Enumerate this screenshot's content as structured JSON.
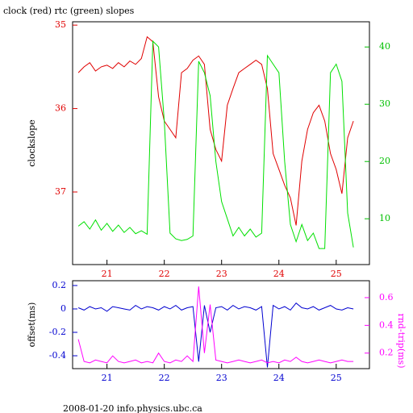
{
  "chart_data": [
    {
      "type": "line",
      "title": "clock (red) rtc (green) slopes",
      "ylabel": "clockslope",
      "x": [
        20.5,
        20.6,
        20.7,
        20.8,
        20.9,
        21.0,
        21.1,
        21.2,
        21.3,
        21.4,
        21.5,
        21.6,
        21.7,
        21.8,
        21.9,
        22.0,
        22.1,
        22.2,
        22.3,
        22.4,
        22.5,
        22.6,
        22.7,
        22.8,
        22.9,
        23.0,
        23.1,
        23.2,
        23.3,
        23.4,
        23.5,
        23.6,
        23.7,
        23.8,
        23.9,
        24.0,
        24.1,
        24.2,
        24.3,
        24.4,
        24.5,
        24.6,
        24.7,
        24.8,
        24.9,
        25.0,
        25.1,
        25.2,
        25.3
      ],
      "series": [
        {
          "color": "#e00000",
          "axis": "y",
          "values": [
            35.57,
            35.5,
            35.45,
            35.55,
            35.5,
            35.48,
            35.52,
            35.45,
            35.5,
            35.43,
            35.47,
            35.4,
            35.14,
            35.2,
            35.86,
            36.15,
            36.25,
            36.35,
            35.57,
            35.52,
            35.42,
            35.37,
            35.47,
            36.25,
            36.49,
            36.63,
            35.96,
            35.76,
            35.57,
            35.52,
            35.47,
            35.42,
            35.47,
            35.76,
            36.54,
            36.73,
            36.92,
            37.07,
            37.4,
            36.63,
            36.25,
            36.05,
            35.96,
            36.15,
            36.54,
            36.73,
            37.02,
            36.35,
            36.15
          ]
        },
        {
          "color": "#00e000",
          "axis": "y2",
          "values": [
            8.7,
            9.5,
            8.2,
            9.8,
            8.0,
            9.2,
            7.8,
            8.9,
            7.6,
            8.5,
            7.4,
            7.9,
            7.3,
            41,
            40,
            27,
            7.5,
            6.5,
            6.2,
            6.4,
            7.0,
            37.5,
            35.5,
            31.5,
            20,
            13,
            10,
            7.0,
            8.5,
            7.0,
            8.2,
            6.8,
            7.5,
            38.5,
            37,
            35.5,
            20,
            9,
            6,
            9,
            6.2,
            7.5,
            4.8,
            4.8,
            35.5,
            37,
            34,
            11,
            5
          ]
        }
      ],
      "xlim": [
        20.4,
        25.58
      ],
      "xticks": [
        21,
        22,
        23,
        24,
        25
      ],
      "xcolor": "#e00000",
      "ylim": [
        34.96,
        37.87
      ],
      "yticks": [
        35,
        36,
        37
      ],
      "yinvert": true,
      "ycolor": "#e00000",
      "y2lim": [
        2,
        44.4
      ],
      "y2ticks": [
        10,
        20,
        30,
        40
      ],
      "y2color": "#00c000"
    },
    {
      "type": "line",
      "ylabel": "offset(ms)",
      "y2label": "rnd-trip(ms)",
      "x": [
        20.5,
        20.6,
        20.7,
        20.8,
        20.9,
        21.0,
        21.1,
        21.2,
        21.3,
        21.4,
        21.5,
        21.6,
        21.7,
        21.8,
        21.9,
        22.0,
        22.1,
        22.2,
        22.3,
        22.4,
        22.5,
        22.6,
        22.7,
        22.8,
        22.9,
        23.0,
        23.1,
        23.2,
        23.3,
        23.4,
        23.5,
        23.6,
        23.7,
        23.8,
        23.9,
        24.0,
        24.1,
        24.2,
        24.3,
        24.4,
        24.5,
        24.6,
        24.7,
        24.8,
        24.9,
        25.0,
        25.1,
        25.2,
        25.3
      ],
      "series": [
        {
          "color": "#0000d0",
          "axis": "y",
          "values": [
            0.01,
            -0.01,
            0.02,
            0,
            0.01,
            -0.02,
            0.02,
            0.01,
            0,
            -0.01,
            0.03,
            0,
            0.02,
            0.01,
            -0.01,
            0.02,
            0,
            0.03,
            -0.01,
            0.01,
            0.02,
            -0.45,
            0.03,
            -0.2,
            0.01,
            0.02,
            -0.01,
            0.03,
            0,
            0.02,
            0.01,
            -0.01,
            0.02,
            -0.5,
            0.03,
            0,
            0.02,
            -0.01,
            0.05,
            0.01,
            0,
            0.02,
            -0.01,
            0.01,
            0.03,
            0,
            -0.01,
            0.01,
            0
          ]
        },
        {
          "color": "#ff00ff",
          "axis": "y2",
          "values": [
            0.3,
            0.14,
            0.13,
            0.15,
            0.14,
            0.13,
            0.18,
            0.14,
            0.13,
            0.14,
            0.15,
            0.13,
            0.14,
            0.13,
            0.2,
            0.14,
            0.13,
            0.15,
            0.14,
            0.18,
            0.14,
            0.68,
            0.2,
            0.55,
            0.15,
            0.14,
            0.13,
            0.14,
            0.15,
            0.14,
            0.13,
            0.14,
            0.15,
            0.13,
            0.14,
            0.13,
            0.15,
            0.14,
            0.17,
            0.14,
            0.13,
            0.14,
            0.15,
            0.14,
            0.13,
            0.14,
            0.15,
            0.14,
            0.14
          ]
        }
      ],
      "xlim": [
        20.4,
        25.58
      ],
      "xticks": [
        21,
        22,
        23,
        24,
        25
      ],
      "xcolor": "#0000d0",
      "ylim": [
        -0.51,
        0.241
      ],
      "yticks": [
        0.2,
        0,
        -0.2,
        -0.4
      ],
      "ycolor": "#0000d0",
      "y2lim": [
        0.088,
        0.722
      ],
      "y2ticks": [
        0.2,
        0.4,
        0.6
      ],
      "y2color": "#ff00ff"
    }
  ],
  "footer": "2008-01-20 info.physics.ubc.ca"
}
